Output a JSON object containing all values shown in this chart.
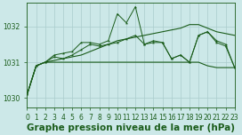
{
  "bg_color": "#cce8e8",
  "grid_color": "#aacccc",
  "line_color": "#1a5c1a",
  "ylim": [
    1029.75,
    1032.65
  ],
  "xlim": [
    0,
    23
  ],
  "yticks": [
    1030,
    1031,
    1032
  ],
  "xticks": [
    0,
    1,
    2,
    3,
    4,
    5,
    6,
    7,
    8,
    9,
    10,
    11,
    12,
    13,
    14,
    15,
    16,
    17,
    18,
    19,
    20,
    21,
    22,
    23
  ],
  "line1_x": [
    0,
    1,
    2,
    3,
    4,
    5,
    6,
    7,
    8,
    9,
    10,
    11,
    12,
    13,
    14,
    15,
    16,
    17,
    18,
    19,
    20,
    21,
    22,
    23
  ],
  "line1_y": [
    1030.1,
    1030.9,
    1031.0,
    1031.0,
    1031.0,
    1031.0,
    1031.0,
    1031.0,
    1031.0,
    1031.0,
    1031.0,
    1031.0,
    1031.0,
    1031.0,
    1031.0,
    1031.0,
    1031.0,
    1031.0,
    1031.0,
    1031.0,
    1030.9,
    1030.85,
    1030.85,
    1030.85
  ],
  "line2_x": [
    0,
    1,
    2,
    3,
    4,
    5,
    6,
    7,
    8,
    9,
    10,
    11,
    12,
    13,
    14,
    15,
    16,
    17,
    18,
    19,
    20,
    21,
    22,
    23
  ],
  "line2_y": [
    1030.1,
    1030.9,
    1031.0,
    1031.05,
    1031.1,
    1031.15,
    1031.2,
    1031.3,
    1031.4,
    1031.5,
    1031.6,
    1031.65,
    1031.7,
    1031.75,
    1031.8,
    1031.85,
    1031.9,
    1031.95,
    1032.05,
    1032.05,
    1031.95,
    1031.85,
    1031.8,
    1031.75
  ],
  "line3_x": [
    0,
    1,
    2,
    3,
    4,
    5,
    6,
    7,
    8,
    9,
    10,
    11,
    12,
    13,
    14,
    15,
    16,
    17,
    18,
    19,
    20,
    21,
    22,
    23
  ],
  "line3_y": [
    1030.1,
    1030.9,
    1031.0,
    1031.15,
    1031.1,
    1031.2,
    1031.35,
    1031.5,
    1031.45,
    1031.5,
    1031.55,
    1031.65,
    1031.75,
    1031.5,
    1031.55,
    1031.55,
    1031.1,
    1031.2,
    1031.0,
    1031.75,
    1031.85,
    1031.55,
    1031.45,
    1030.85
  ],
  "line4_x": [
    0,
    1,
    2,
    3,
    4,
    5,
    6,
    7,
    8,
    9,
    10,
    11,
    12,
    13,
    14,
    15,
    16,
    17,
    18,
    19,
    20,
    21,
    22,
    23
  ],
  "line4_y": [
    1030.1,
    1030.9,
    1031.0,
    1031.2,
    1031.25,
    1031.3,
    1031.55,
    1031.55,
    1031.5,
    1031.6,
    1032.35,
    1032.1,
    1032.55,
    1031.5,
    1031.6,
    1031.55,
    1031.1,
    1031.2,
    1031.0,
    1031.75,
    1031.85,
    1031.6,
    1031.5,
    1030.85
  ],
  "xlabel": "Graphe pression niveau de la mer (hPa)",
  "xlabel_fontsize": 7.5,
  "tick_fontsize": 5.5
}
